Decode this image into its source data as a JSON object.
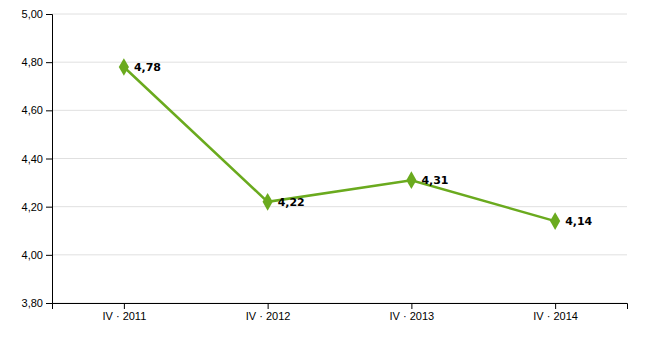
{
  "chart_data": {
    "type": "line",
    "categories": [
      "IV · 2011",
      "IV · 2012",
      "IV · 2013",
      "IV · 2014"
    ],
    "values": [
      4.78,
      4.22,
      4.31,
      4.14
    ],
    "value_labels": [
      "4,78",
      "4,22",
      "4,31",
      "4,14"
    ],
    "color": "#6aaa1e",
    "marker": "diamond",
    "ylim": [
      3.8,
      5.0
    ],
    "yticks": [
      {
        "value": 3.8,
        "label": "3,80"
      },
      {
        "value": 4.0,
        "label": "4,00"
      },
      {
        "value": 4.2,
        "label": "4,20"
      },
      {
        "value": 4.4,
        "label": "4,40"
      },
      {
        "value": 4.6,
        "label": "4,60"
      },
      {
        "value": 4.8,
        "label": "4,80"
      },
      {
        "value": 5.0,
        "label": "5,00"
      }
    ],
    "grid": true,
    "data_labels": true
  }
}
